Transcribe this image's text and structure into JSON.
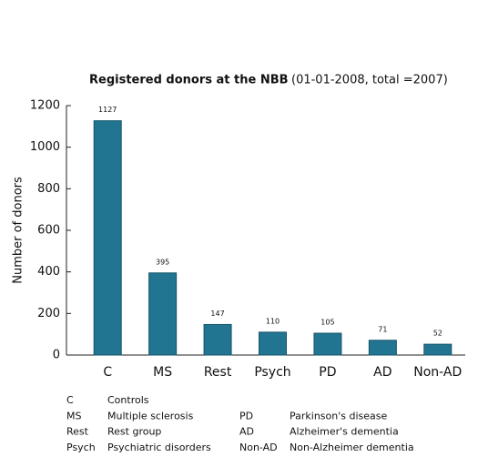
{
  "chart_data": {
    "type": "bar",
    "title": "Registered donors at the NBB",
    "subtitle": "(01-01-2008, total =2007)",
    "y_label": "Number of donors",
    "categories": [
      "C",
      "MS",
      "Rest",
      "Psych",
      "PD",
      "AD",
      "Non-AD"
    ],
    "values": [
      1127,
      395,
      147,
      110,
      105,
      71,
      52
    ],
    "color": "#217591",
    "ylim": [
      0,
      1200
    ],
    "yticks": [
      0,
      200,
      400,
      600,
      800,
      1000,
      1200
    ],
    "grid": false
  },
  "abbreviations": [
    {
      "abbr": "C",
      "meaning": "Controls"
    },
    {
      "abbr": "MS",
      "meaning": "Multiple sclerosis"
    },
    {
      "abbr": "Rest",
      "meaning": "Rest group"
    },
    {
      "abbr": "Psych",
      "meaning": "Psychiatric disorders"
    },
    {
      "abbr": "PD",
      "meaning": "Parkinson's disease"
    },
    {
      "abbr": "AD",
      "meaning": "Alzheimer's dementia"
    },
    {
      "abbr": "Non-AD",
      "meaning": "Non-Alzheimer dementia"
    }
  ]
}
